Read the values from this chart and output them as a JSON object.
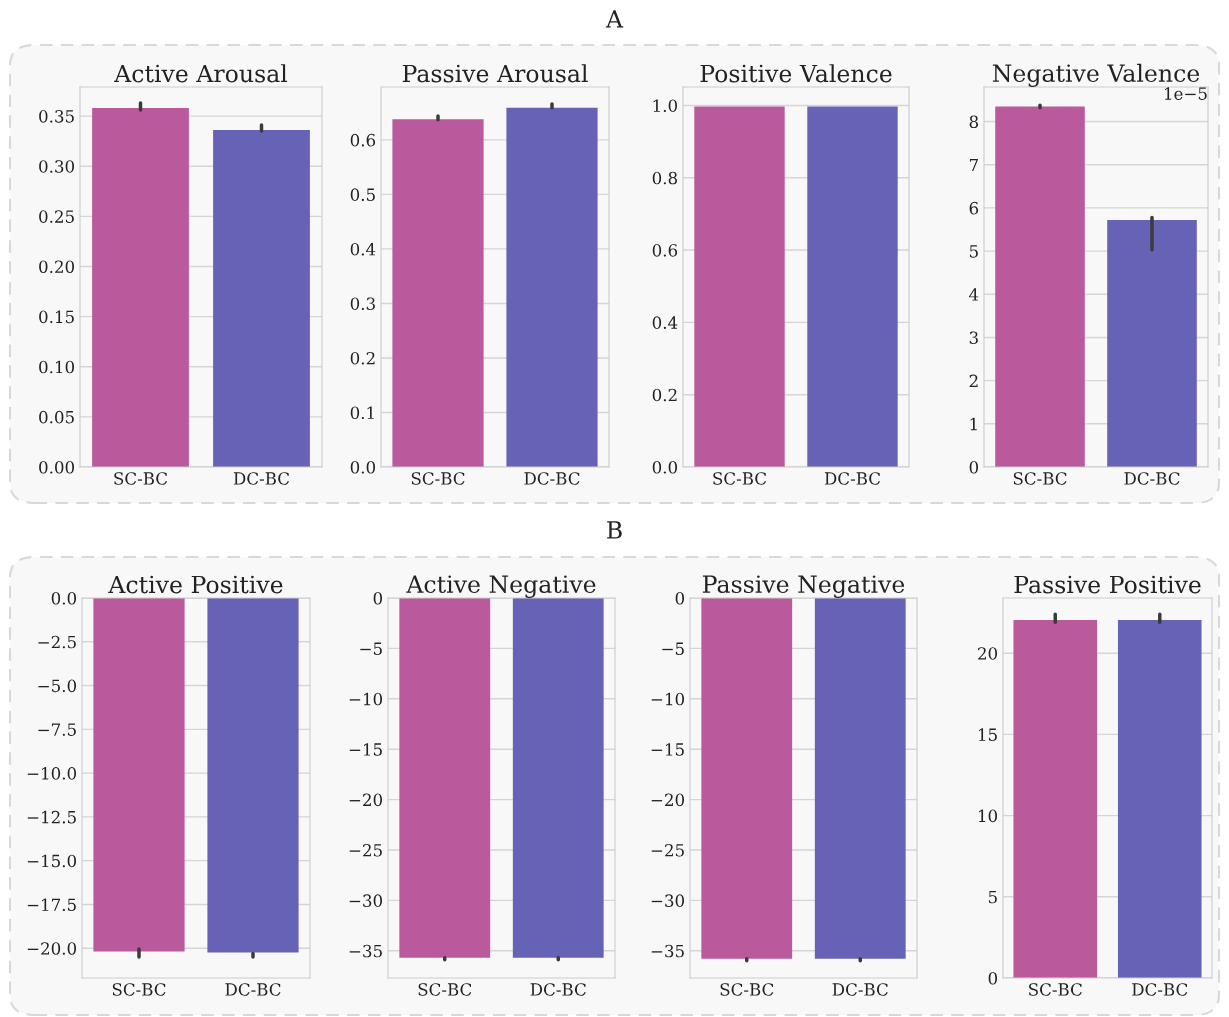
{
  "chart_data": [
    {
      "type": "bar",
      "title": "Active Arousal",
      "annotations": [
        "A"
      ],
      "categories": [
        "SC-BC",
        "DC-BC"
      ],
      "values": [
        0.358,
        0.336
      ],
      "colors": [
        "#ba5a9c",
        "#6662b5"
      ],
      "errors": [
        [
          0.356,
          0.363
        ],
        [
          0.335,
          0.341
        ]
      ],
      "ylim": [
        0,
        0.379
      ],
      "yticks": [
        {
          "value": 0,
          "label": "0.00"
        },
        0.05,
        {
          "value": 0.1,
          "label": "0.10"
        },
        0.15,
        {
          "value": 0.2,
          "label": "0.20"
        },
        0.25,
        {
          "value": 0.3,
          "label": "0.30"
        },
        0.35
      ],
      "grid": "y"
    },
    {
      "type": "bar",
      "title": "Passive Arousal",
      "categories": [
        "SC-BC",
        "DC-BC"
      ],
      "values": [
        0.638,
        0.659
      ],
      "colors": [
        "#ba5a9c",
        "#6662b5"
      ],
      "errors": [
        [
          0.637,
          0.644
        ],
        [
          0.659,
          0.666
        ]
      ],
      "ylim": [
        0,
        0.697
      ],
      "yticks": [
        {
          "value": 0,
          "label": "0.0"
        },
        0.1,
        0.2,
        0.3,
        0.4,
        0.5,
        0.6
      ],
      "grid": "y"
    },
    {
      "type": "bar",
      "title": "Positive Valence",
      "categories": [
        "SC-BC",
        "DC-BC"
      ],
      "values": [
        0.997,
        0.997
      ],
      "colors": [
        "#ba5a9c",
        "#6662b5"
      ],
      "ylim": [
        0,
        1.051
      ],
      "yticks": [
        {
          "value": 0,
          "label": "0.0"
        },
        0.2,
        0.4,
        0.6,
        0.8,
        {
          "value": 1,
          "label": "1.0"
        }
      ],
      "grid": "y"
    },
    {
      "type": "bar",
      "title": "Negative Valence",
      "annotations": [
        "1e−5"
      ],
      "categories": [
        "SC-BC",
        "DC-BC"
      ],
      "values": [
        8.35,
        5.72
      ],
      "colors": [
        "#ba5a9c",
        "#6662b5"
      ],
      "errors": [
        [
          8.32,
          8.38
        ],
        [
          5.03,
          5.78
        ]
      ],
      "ylim": [
        0,
        8.8
      ],
      "yticks": [
        0,
        1,
        2,
        3,
        4,
        5,
        6,
        7,
        8
      ],
      "grid": "y"
    },
    {
      "type": "bar",
      "title": "Active Positive",
      "annotations": [
        "B"
      ],
      "categories": [
        "SC-BC",
        "DC-BC"
      ],
      "values": [
        -20.18,
        -20.25
      ],
      "colors": [
        "#ba5a9c",
        "#6662b5"
      ],
      "errors": [
        [
          -20.5,
          -20.05
        ],
        [
          -20.5,
          -20.3
        ]
      ],
      "ylim": [
        -21.7,
        0
      ],
      "yticks": [
        {
          "value": -20,
          "label": "−20.0"
        },
        {
          "value": -17.5,
          "label": "−17.5"
        },
        {
          "value": -15,
          "label": "−15.0"
        },
        {
          "value": -12.5,
          "label": "−12.5"
        },
        {
          "value": -10,
          "label": "−10.0"
        },
        {
          "value": -7.5,
          "label": "−7.5"
        },
        {
          "value": -5,
          "label": "−5.0"
        },
        {
          "value": -2.5,
          "label": "−2.5"
        },
        {
          "value": 0,
          "label": "0.0"
        }
      ],
      "grid": "y"
    },
    {
      "type": "bar",
      "title": "Active Negative",
      "categories": [
        "SC-BC",
        "DC-BC"
      ],
      "values": [
        -35.7,
        -35.7
      ],
      "colors": [
        "#ba5a9c",
        "#6662b5"
      ],
      "errors": [
        [
          -35.9,
          -35.7
        ],
        [
          -35.9,
          -35.7
        ]
      ],
      "ylim": [
        -37.7,
        0
      ],
      "yticks": [
        {
          "value": -35,
          "label": "−35"
        },
        {
          "value": -30,
          "label": "−30"
        },
        {
          "value": -25,
          "label": "−25"
        },
        {
          "value": -20,
          "label": "−20"
        },
        {
          "value": -15,
          "label": "−15"
        },
        {
          "value": -10,
          "label": "−10"
        },
        {
          "value": -5,
          "label": "−5"
        },
        0
      ],
      "grid": "y"
    },
    {
      "type": "bar",
      "title": "Passive Negative",
      "categories": [
        "SC-BC",
        "DC-BC"
      ],
      "values": [
        -35.8,
        -35.8
      ],
      "colors": [
        "#ba5a9c",
        "#6662b5"
      ],
      "errors": [
        [
          -36.0,
          -35.8
        ],
        [
          -36.0,
          -35.8
        ]
      ],
      "ylim": [
        -37.7,
        0
      ],
      "yticks": [
        {
          "value": -35,
          "label": "−35"
        },
        {
          "value": -30,
          "label": "−30"
        },
        {
          "value": -25,
          "label": "−25"
        },
        {
          "value": -20,
          "label": "−20"
        },
        {
          "value": -15,
          "label": "−15"
        },
        {
          "value": -10,
          "label": "−10"
        },
        {
          "value": -5,
          "label": "−5"
        },
        0
      ],
      "grid": "y"
    },
    {
      "type": "bar",
      "title": "Passive Positive",
      "categories": [
        "SC-BC",
        "DC-BC"
      ],
      "values": [
        22.05,
        22.05
      ],
      "colors": [
        "#ba5a9c",
        "#6662b5"
      ],
      "errors": [
        [
          21.9,
          22.4
        ],
        [
          21.9,
          22.4
        ]
      ],
      "ylim": [
        0,
        23.4
      ],
      "yticks": [
        0,
        5,
        10,
        15,
        20
      ],
      "grid": "y"
    }
  ]
}
